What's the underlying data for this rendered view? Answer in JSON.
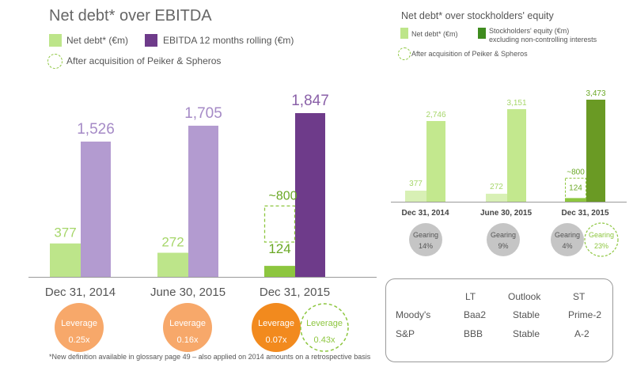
{
  "colors": {
    "net_debt": "#bde58a",
    "net_debt_strong": "#8dc63f",
    "ebitda_light": "#b39bd0",
    "ebitda_dark": "#6e3b8a",
    "equity_light": "#c3e88e",
    "equity_dark": "#6a9a24",
    "leverage_light": "#f7a86a",
    "leverage_dark": "#f28a1e",
    "gearing_grey": "#c5c5c5",
    "title": "#666666"
  },
  "left_chart": {
    "title": "Net debt* over EBITDA",
    "legend": {
      "net_debt": "Net debt* (€m)",
      "ebitda": "EBITDA 12 months rolling (€m)",
      "after_acquisition": "After acquisition of Peiker & Spheros"
    },
    "leverage_label": "Leverage",
    "leverage": [
      "0.25x",
      "0.16x",
      "0.07x"
    ],
    "leverage_after": "0.43x",
    "dashed_label": "~800",
    "footnote": "*New definition available in glossary page 49 – also applied on 2014 amounts on a retrospective basis"
  },
  "right_chart": {
    "title": "Net debt* over stockholders' equity",
    "legend": {
      "net_debt": "Net debt* (€m)",
      "equity_line1": "Stockholders' equity (€m)",
      "equity_line2": "excluding non-controlling interests",
      "after_acquisition": "After acquisition of Peiker & Spheros"
    },
    "gearing_label": "Gearing",
    "gearing": [
      "14%",
      "9%",
      "4%"
    ],
    "gearing_after": "23%",
    "dashed_label": "~800"
  },
  "ratings": {
    "headers": [
      "LT",
      "Outlook",
      "ST"
    ],
    "rows": [
      {
        "agency": "Moody's",
        "lt": "Baa2",
        "outlook": "Stable",
        "st": "Prime-2"
      },
      {
        "agency": "S&P",
        "lt": "BBB",
        "outlook": "Stable",
        "st": "A-2"
      }
    ]
  },
  "chart_data": [
    {
      "type": "bar",
      "title": "Net debt* over EBITDA",
      "categories": [
        "Dec 31, 2014",
        "June 30, 2015",
        "Dec 31, 2015"
      ],
      "series": [
        {
          "name": "Net debt* (€m)",
          "values": [
            377,
            272,
            124
          ]
        },
        {
          "name": "EBITDA 12 months rolling (€m)",
          "values": [
            1526,
            1705,
            1847
          ]
        }
      ],
      "value_labels": {
        "net_debt": [
          "377",
          "272",
          "124"
        ],
        "ebitda": [
          "1,526",
          "1,705",
          "1,847"
        ]
      },
      "after_acquisition_net_debt": 800,
      "ylim": [
        0,
        1900
      ]
    },
    {
      "type": "bar",
      "title": "Net debt* over stockholders' equity",
      "categories": [
        "Dec 31, 2014",
        "June 30, 2015",
        "Dec 31, 2015"
      ],
      "series": [
        {
          "name": "Net debt* (€m)",
          "values": [
            377,
            272,
            124
          ]
        },
        {
          "name": "Stockholders' equity (€m) excluding non-controlling interests",
          "values": [
            2746,
            3151,
            3473
          ]
        }
      ],
      "value_labels": {
        "net_debt": [
          "377",
          "272",
          "124"
        ],
        "equity": [
          "2,746",
          "3,151",
          "3,473"
        ]
      },
      "after_acquisition_net_debt": 800,
      "ylim": [
        0,
        3600
      ]
    }
  ]
}
